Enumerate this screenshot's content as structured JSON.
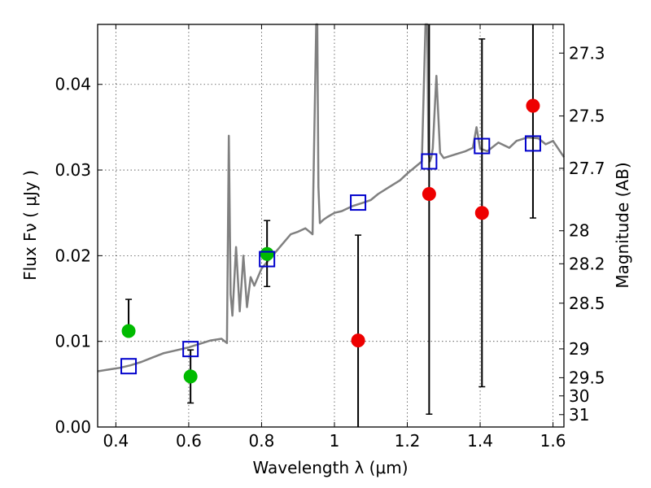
{
  "chart_data": {
    "type": "scatter",
    "title": "",
    "xlabel": "Wavelength  λ (μm)",
    "ylabel": "Flux  Fν  ( μJy )",
    "ylabel_right": "Magnitude (AB)",
    "xlim": [
      0.35,
      1.63
    ],
    "ylim": [
      0.0,
      0.047
    ],
    "grid": true,
    "x_ticks": [
      0.4,
      0.6,
      0.8,
      1.0,
      1.2,
      1.4,
      1.6
    ],
    "x_tick_labels": [
      "0.4",
      "0.6",
      "0.8",
      "1",
      "1.2",
      "1.4",
      "1.6"
    ],
    "y_ticks": [
      0.0,
      0.01,
      0.02,
      0.03,
      0.04
    ],
    "y_tick_labels": [
      "0.00",
      "0.01",
      "0.02",
      "0.03",
      "0.04"
    ],
    "mag_ticks": [
      27.3,
      27.5,
      27.7,
      28.0,
      28.2,
      28.5,
      29.0,
      29.5,
      30.0,
      31.0
    ],
    "mag_tick_labels": [
      "27.3",
      "27.5",
      "27.7",
      "28",
      "28.2",
      "28.5",
      "29",
      "29.5",
      "30",
      "31"
    ],
    "colors": {
      "model": "#808080",
      "detection": "#00bb00",
      "non_detection": "#ee0000",
      "model_band": "#0000cc",
      "errorbar": "#000000"
    },
    "series": [
      {
        "kind": "model_sed_line",
        "x": [
          0.35,
          0.38,
          0.41,
          0.44,
          0.47,
          0.5,
          0.53,
          0.56,
          0.6,
          0.63,
          0.66,
          0.69,
          0.705,
          0.71,
          0.715,
          0.72,
          0.73,
          0.74,
          0.75,
          0.76,
          0.77,
          0.78,
          0.8,
          0.82,
          0.84,
          0.86,
          0.88,
          0.9,
          0.92,
          0.94,
          0.95,
          0.953,
          0.956,
          0.96,
          0.97,
          0.98,
          1.0,
          1.02,
          1.05,
          1.08,
          1.1,
          1.12,
          1.15,
          1.18,
          1.2,
          1.22,
          1.24,
          1.25,
          1.255,
          1.258,
          1.262,
          1.266,
          1.27,
          1.28,
          1.29,
          1.3,
          1.33,
          1.36,
          1.38,
          1.39,
          1.4,
          1.42,
          1.45,
          1.48,
          1.5,
          1.53,
          1.56,
          1.58,
          1.6,
          1.63
        ],
        "y": [
          0.0065,
          0.0067,
          0.0069,
          0.0072,
          0.0076,
          0.0081,
          0.0086,
          0.0089,
          0.0093,
          0.0097,
          0.0101,
          0.0103,
          0.0098,
          0.034,
          0.0155,
          0.013,
          0.021,
          0.0135,
          0.02,
          0.014,
          0.0175,
          0.0165,
          0.0185,
          0.0195,
          0.0205,
          0.0215,
          0.0225,
          0.0228,
          0.0232,
          0.0225,
          0.047,
          0.047,
          0.028,
          0.0238,
          0.0242,
          0.0245,
          0.025,
          0.0252,
          0.0258,
          0.0262,
          0.0265,
          0.0272,
          0.028,
          0.0288,
          0.0296,
          0.0303,
          0.031,
          0.047,
          0.047,
          0.032,
          0.031,
          0.0315,
          0.0325,
          0.041,
          0.032,
          0.0314,
          0.0318,
          0.0322,
          0.0326,
          0.035,
          0.0325,
          0.0322,
          0.0332,
          0.0326,
          0.0334,
          0.0338,
          0.0337,
          0.033,
          0.0334,
          0.0315
        ]
      },
      {
        "kind": "detection",
        "x": [
          0.435,
          0.605,
          0.815
        ],
        "y": [
          0.0112,
          0.0059,
          0.0202
        ],
        "yerr_low": [
          0.0,
          0.0031,
          0.0038
        ],
        "yerr_high": [
          0.0037,
          0.0031,
          0.0039
        ]
      },
      {
        "kind": "non_detection",
        "x": [
          1.065,
          1.26,
          1.405,
          1.545
        ],
        "y": [
          0.0101,
          0.0272,
          0.025,
          0.0375
        ],
        "yerr_low": [
          0.0101,
          0.0257,
          0.0203,
          0.0131
        ],
        "yerr_high": [
          0.0123,
          0.0198,
          0.0203,
          0.0131
        ]
      },
      {
        "kind": "model_band_flux",
        "x": [
          0.435,
          0.605,
          0.815,
          1.065,
          1.26,
          1.405,
          1.545
        ],
        "y": [
          0.0071,
          0.0091,
          0.0196,
          0.0262,
          0.031,
          0.0328,
          0.0331
        ]
      }
    ]
  }
}
